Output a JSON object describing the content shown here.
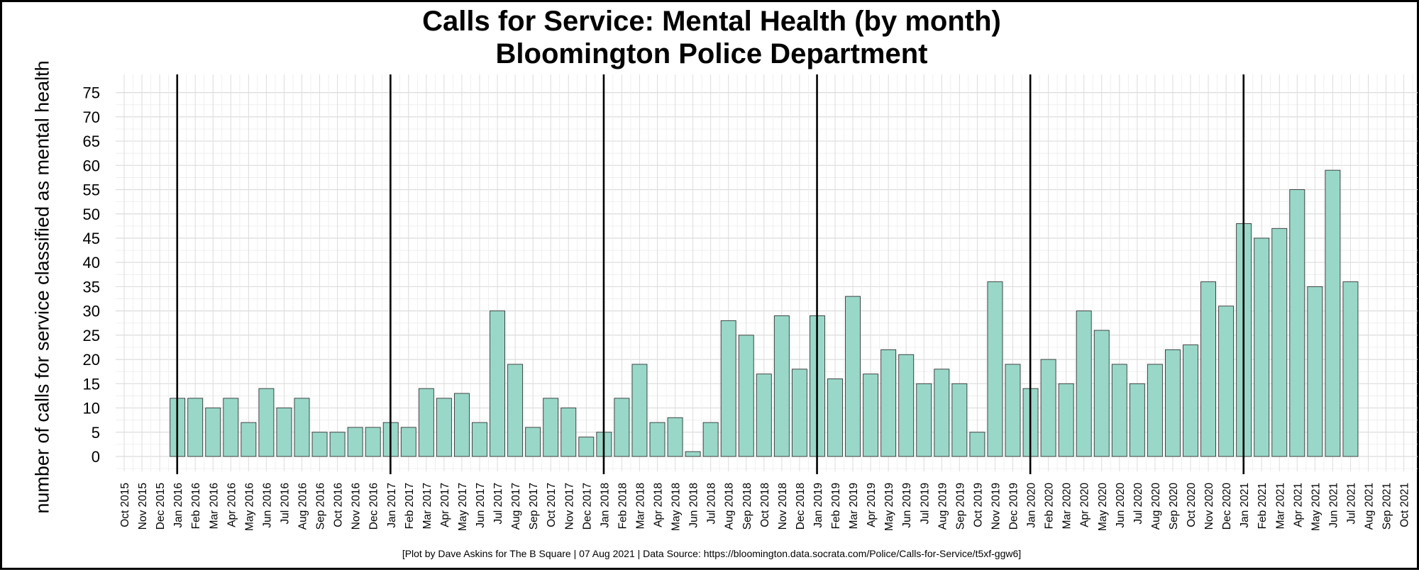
{
  "chart_data": {
    "type": "bar",
    "title": [
      "Calls for Service: Mental Health (by month)",
      "Bloomington Police Department"
    ],
    "xlabel": "",
    "ylabel": "number of calls for service classified as mental health",
    "caption": "[Plot by Dave Askins for The B Square | 07 Aug 2021 | Data Source: https://bloomington.data.socrata.com/Police/Calls-for-Service/t5xf-ggw6]",
    "ylim": [
      0,
      77
    ],
    "yticks": [
      0,
      5,
      10,
      15,
      20,
      25,
      30,
      35,
      40,
      45,
      50,
      55,
      60,
      65,
      70,
      75
    ],
    "grid": true,
    "bar_color": "#99d8c9",
    "bar_edge_color": "#333333",
    "year_line_color": "#000000",
    "categories": [
      "Oct 2015",
      "Nov 2015",
      "Dec 2015",
      "Jan 2016",
      "Feb 2016",
      "Mar 2016",
      "Apr 2016",
      "May 2016",
      "Jun 2016",
      "Jul 2016",
      "Aug 2016",
      "Sep 2016",
      "Oct 2016",
      "Nov 2016",
      "Dec 2016",
      "Jan 2017",
      "Feb 2017",
      "Mar 2017",
      "Apr 2017",
      "May 2017",
      "Jun 2017",
      "Jul 2017",
      "Aug 2017",
      "Sep 2017",
      "Oct 2017",
      "Nov 2017",
      "Dec 2017",
      "Jan 2018",
      "Feb 2018",
      "Mar 2018",
      "Apr 2018",
      "May 2018",
      "Jun 2018",
      "Jul 2018",
      "Aug 2018",
      "Sep 2018",
      "Oct 2018",
      "Nov 2018",
      "Dec 2018",
      "Jan 2019",
      "Feb 2019",
      "Mar 2019",
      "Apr 2019",
      "May 2019",
      "Jun 2019",
      "Jul 2019",
      "Aug 2019",
      "Sep 2019",
      "Oct 2019",
      "Nov 2019",
      "Dec 2019",
      "Jan 2020",
      "Feb 2020",
      "Mar 2020",
      "Apr 2020",
      "May 2020",
      "Jun 2020",
      "Jul 2020",
      "Aug 2020",
      "Sep 2020",
      "Oct 2020",
      "Nov 2020",
      "Dec 2020",
      "Jan 2021",
      "Feb 2021",
      "Mar 2021",
      "Apr 2021",
      "May 2021",
      "Jun 2021",
      "Jul 2021",
      "Aug 2021",
      "Sep 2021",
      "Oct 2021"
    ],
    "values": [
      null,
      null,
      null,
      12,
      12,
      10,
      12,
      7,
      14,
      10,
      12,
      5,
      5,
      6,
      6,
      7,
      6,
      14,
      12,
      13,
      7,
      30,
      19,
      6,
      12,
      10,
      4,
      5,
      12,
      19,
      7,
      8,
      1,
      7,
      28,
      25,
      17,
      29,
      18,
      29,
      16,
      33,
      17,
      22,
      21,
      15,
      18,
      15,
      5,
      36,
      19,
      14,
      20,
      15,
      30,
      26,
      19,
      15,
      19,
      22,
      23,
      36,
      31,
      48,
      45,
      47,
      55,
      35,
      59,
      36,
      null,
      null,
      null
    ],
    "year_boundaries": [
      "Jan 2016",
      "Jan 2017",
      "Jan 2018",
      "Jan 2019",
      "Jan 2020",
      "Jan 2021"
    ]
  }
}
